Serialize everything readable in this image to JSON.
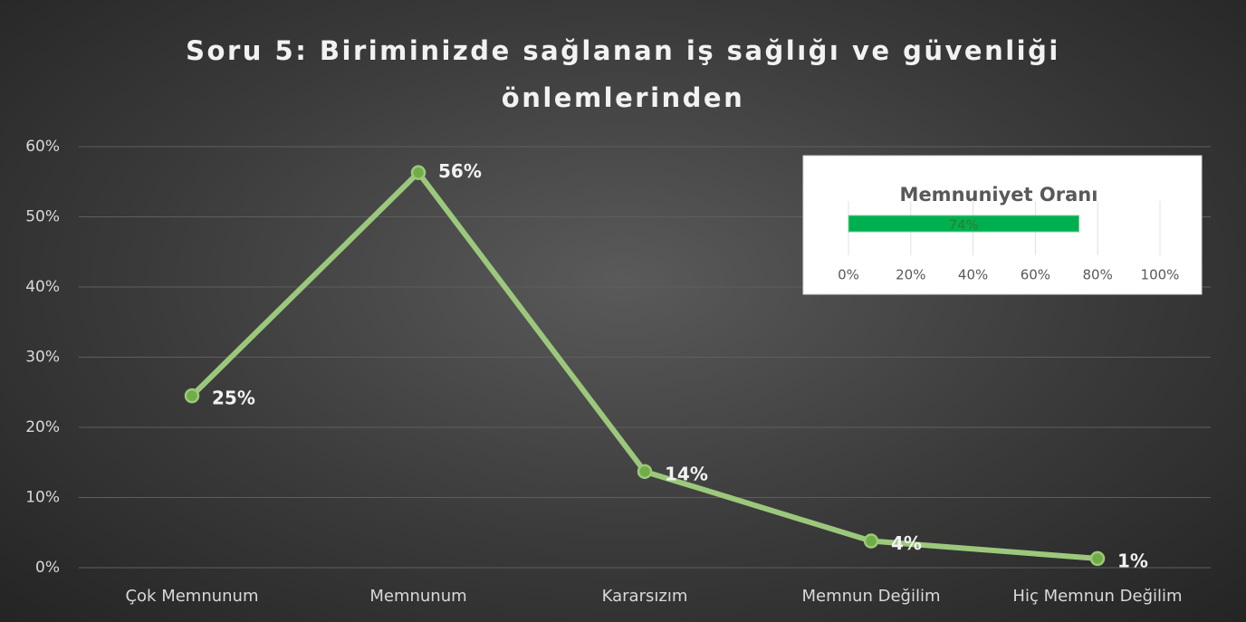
{
  "chart_data": [
    {
      "type": "line",
      "title": "Soru 5: Biriminizde sağlanan iş sağlığı ve güvenliği önlemlerinden",
      "categories": [
        "Çok Memnunum",
        "Memnunum",
        "Kararsızım",
        "Memnun Değilim",
        "Hiç Memnun Değilim"
      ],
      "values": [
        24.5,
        56.3,
        13.7,
        3.8,
        1.3
      ],
      "value_labels": [
        "25%",
        "56%",
        "14%",
        "4%",
        "1%"
      ],
      "color": "#9cc87c",
      "ylim": [
        0,
        60
      ],
      "yticks": [
        {
          "value": 0,
          "label": "0%"
        },
        {
          "value": 10,
          "label": "10%"
        },
        {
          "value": 20,
          "label": "20%"
        },
        {
          "value": 30,
          "label": "30%"
        },
        {
          "value": 40,
          "label": "40%"
        },
        {
          "value": 50,
          "label": "50%"
        },
        {
          "value": 60,
          "label": "60%"
        }
      ],
      "grid": true
    },
    {
      "type": "hbar",
      "title": "Memnuniyet Oranı",
      "values": [
        74
      ],
      "value_labels": [
        "74%"
      ],
      "color": "#00b050",
      "xlim": [
        0,
        100
      ],
      "xticks": [
        {
          "value": 0,
          "label": "0%"
        },
        {
          "value": 20,
          "label": "20%"
        },
        {
          "value": 40,
          "label": "40%"
        },
        {
          "value": 60,
          "label": "60%"
        },
        {
          "value": 80,
          "label": "80%"
        },
        {
          "value": 100,
          "label": "100%"
        }
      ],
      "grid": true
    }
  ]
}
